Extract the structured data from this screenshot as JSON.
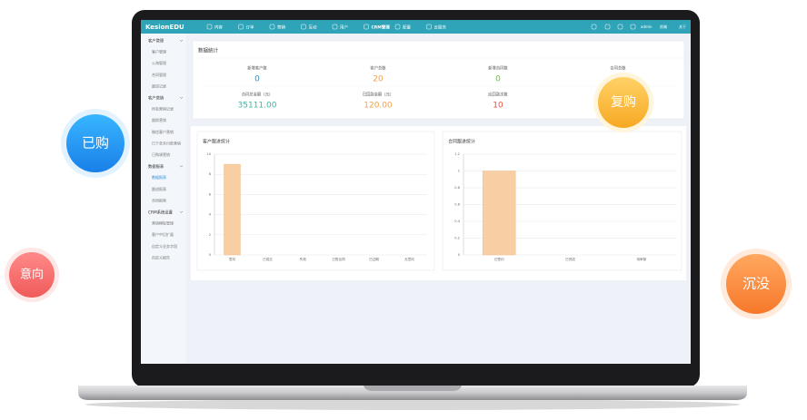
{
  "bubbles": [
    "已购",
    "意向",
    "复购",
    "沉没"
  ],
  "app": {
    "brand": "KesionEDU",
    "nav": [
      "内容",
      "订单",
      "营销",
      "互动",
      "用户",
      "CRM管理",
      "配置",
      "云服务"
    ],
    "active_nav": 5,
    "user_links": [
      "admin",
      "前端",
      "关于"
    ],
    "sidebar": [
      {
        "title": "客户管理",
        "items": [
          {
            "label": "客户管理"
          },
          {
            "label": "公海管理"
          },
          {
            "label": "合同管理"
          },
          {
            "label": "跟进记录"
          }
        ]
      },
      {
        "title": "客户营销",
        "items": [
          {
            "label": "所有营销记录"
          },
          {
            "label": "跟踪营销"
          },
          {
            "label": "微信客户营销"
          },
          {
            "label": "已下单未付款营销"
          },
          {
            "label": "已购课营销"
          }
        ]
      },
      {
        "title": "数据报表",
        "items": [
          {
            "label": "数据报表",
            "active": true
          },
          {
            "label": "跟进报表"
          },
          {
            "label": "合同报表"
          }
        ]
      },
      {
        "title": "CRM系统设置",
        "items": [
          {
            "label": "营销模板管理"
          },
          {
            "label": "客户中后扩展"
          },
          {
            "label": "自定义业务字段"
          },
          {
            "label": "自定义报告"
          }
        ]
      }
    ],
    "stats_title": "数据统计",
    "stats": [
      {
        "label": "新增客户数",
        "value": "0",
        "color": "#2a8fd6"
      },
      {
        "label": "客户总数",
        "value": "20",
        "color": "#f0a04b"
      },
      {
        "label": "新增合同数",
        "value": "0",
        "color": "#6cc04a"
      },
      {
        "label": "合同总数"
      },
      {
        "label": "合同总金额（元）",
        "value": "35111.00",
        "color": "#3bb5a0"
      },
      {
        "label": "已回款金额（元）",
        "value": "120.00",
        "color": "#f0a04b"
      },
      {
        "label": "应回款次数",
        "value": "10",
        "color": "#e74c3c"
      }
    ]
  },
  "chart_data": [
    {
      "type": "bar",
      "title": "客户跟进统计",
      "categories": [
        "意向",
        "已成交",
        "失效",
        "已签合同",
        "已过期",
        "无意向"
      ],
      "values": [
        9,
        0,
        0,
        0,
        0,
        0
      ],
      "color": "#f8cfa4",
      "ylim": [
        0,
        10
      ],
      "yticks": [
        0,
        2,
        4,
        6,
        8,
        10
      ],
      "grid": true
    },
    {
      "type": "bar",
      "title": "合同跟进统计",
      "categories": [
        "已签约",
        "已完成",
        "待审核"
      ],
      "values": [
        1,
        0,
        0
      ],
      "color": "#f8cfa4",
      "ylim": [
        0,
        1.2
      ],
      "yticks": [
        0,
        0.2,
        0.4,
        0.6,
        0.8,
        1,
        1.2
      ],
      "grid": true
    }
  ]
}
